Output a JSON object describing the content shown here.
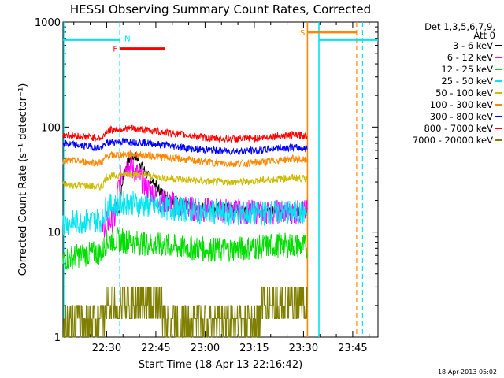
{
  "chart_data": {
    "type": "line",
    "title": "HESSI Observing Summary Count Rates, Corrected",
    "xlabel": "Start Time (18-Apr-13 22:16:42)",
    "ylabel": "Corrected Count Rate (s⁻¹ detector⁻¹)",
    "yscale": "log",
    "ylim": [
      1,
      1000
    ],
    "xlim_minutes": [
      0,
      96
    ],
    "x_ticks": [
      {
        "m": 13.3,
        "label": "22:30"
      },
      {
        "m": 28.3,
        "label": "22:45"
      },
      {
        "m": 43.3,
        "label": "23:00"
      },
      {
        "m": 58.3,
        "label": "23:15"
      },
      {
        "m": 73.3,
        "label": "23:30"
      },
      {
        "m": 88.3,
        "label": "23:45"
      }
    ],
    "y_ticks": [
      {
        "v": 1,
        "label": "1"
      },
      {
        "v": 10,
        "label": "10"
      },
      {
        "v": 100,
        "label": "100"
      },
      {
        "v": 1000,
        "label": "1000"
      }
    ],
    "legend": {
      "placement": "right",
      "header": [
        "Det 1,3,5,6,7,9,",
        "Att 0"
      ]
    },
    "series": [
      {
        "name": "3 - 6 keV",
        "color": "#000000",
        "x": [
          17,
          19,
          20,
          21,
          22,
          23,
          24,
          25,
          26,
          27,
          28,
          29,
          30,
          32,
          34,
          36,
          38,
          40,
          45,
          50,
          55,
          60,
          65,
          70,
          74.5
        ],
        "y": [
          15,
          40,
          48,
          52,
          53,
          48,
          43,
          38,
          34,
          31,
          29,
          26,
          24,
          22,
          20,
          19,
          18,
          17.5,
          17,
          17,
          16.5,
          16.5,
          16,
          16,
          16
        ]
      },
      {
        "name": "6 - 12 keV",
        "color": "#ff00ff",
        "x": [
          12,
          13,
          14,
          15,
          16,
          17,
          18,
          19,
          20,
          21,
          22,
          23,
          24,
          25,
          26,
          27,
          28,
          29,
          30,
          32,
          34,
          36,
          38,
          40,
          45,
          50,
          55,
          60,
          65,
          70,
          74.5
        ],
        "y": [
          11,
          12,
          12.5,
          13,
          13.5,
          28,
          38,
          42,
          43,
          40,
          38,
          35,
          31,
          28,
          26,
          24,
          22,
          21,
          20,
          19,
          18.5,
          17.5,
          17,
          16.5,
          16,
          16,
          15.5,
          15.5,
          15.5,
          15.5,
          15.5
        ]
      },
      {
        "name": "12 - 25 keV",
        "color": "#00dd00",
        "x": [
          0,
          5,
          10,
          12,
          13,
          15,
          20,
          25,
          30,
          35,
          40,
          45,
          50,
          55,
          60,
          65,
          70,
          74.5
        ],
        "y": [
          5.5,
          6,
          6.3,
          6.5,
          8,
          8.5,
          8.2,
          7.8,
          7.5,
          7.2,
          7,
          6.8,
          6.8,
          7,
          7.2,
          7.5,
          7.5,
          7.2
        ]
      },
      {
        "name": "25 - 50 keV",
        "color": "#00e5ee",
        "x": [
          0,
          5,
          10,
          12,
          13,
          15,
          20,
          25,
          30,
          35,
          40,
          45,
          50,
          55,
          60,
          65,
          70,
          74.5
        ],
        "y": [
          12,
          12.5,
          13,
          13,
          17,
          18,
          19,
          18,
          17,
          16.5,
          16,
          15.5,
          15,
          15,
          15,
          15.5,
          15.5,
          15
        ]
      },
      {
        "name": "50 - 100 keV",
        "color": "#ccbb00",
        "x": [
          0,
          5,
          10,
          12,
          13,
          15,
          20,
          25,
          30,
          35,
          40,
          45,
          50,
          55,
          60,
          65,
          70,
          74.5
        ],
        "y": [
          28,
          28,
          27,
          27,
          33,
          34,
          36,
          35,
          33,
          32,
          31,
          30,
          30,
          30,
          31,
          32,
          33,
          32
        ]
      },
      {
        "name": "100 - 300 keV",
        "color": "#ff8800",
        "x": [
          0,
          5,
          10,
          12,
          13,
          15,
          20,
          25,
          30,
          35,
          40,
          45,
          50,
          55,
          60,
          65,
          70,
          74.5
        ],
        "y": [
          48,
          47,
          46,
          46,
          52,
          54,
          55,
          54,
          52,
          50,
          48,
          46,
          45,
          45,
          46,
          48,
          50,
          48
        ]
      },
      {
        "name": "300 - 800 keV",
        "color": "#0000ff",
        "x": [
          0,
          5,
          10,
          12,
          13,
          15,
          20,
          25,
          30,
          35,
          40,
          45,
          50,
          55,
          60,
          65,
          70,
          74.5
        ],
        "y": [
          70,
          67,
          64,
          63,
          70,
          72,
          73,
          71,
          68,
          65,
          62,
          60,
          59,
          59,
          60,
          63,
          64,
          62
        ]
      },
      {
        "name": "800 - 7000 keV",
        "color": "#ff0000",
        "x": [
          0,
          5,
          10,
          12,
          13,
          15,
          20,
          25,
          30,
          35,
          40,
          45,
          50,
          55,
          60,
          65,
          70,
          74.5
        ],
        "y": [
          85,
          82,
          79,
          78,
          90,
          95,
          97,
          94,
          90,
          86,
          82,
          78,
          77,
          77,
          79,
          82,
          84,
          83
        ]
      },
      {
        "name": "7000 - 20000 keV",
        "color": "#808000",
        "x": [
          0,
          6,
          10,
          12,
          13,
          15,
          16,
          24,
          25,
          30,
          31,
          40,
          50,
          51,
          60,
          61,
          74.5
        ],
        "y": [
          2,
          2,
          1.5,
          1.5,
          2.5,
          2.8,
          3,
          3,
          2.5,
          2.5,
          2,
          2,
          2,
          2.2,
          2.2,
          2.8,
          2.8
        ]
      }
    ],
    "annotations": {
      "saa_bar": {
        "label": "S",
        "color": "#ff8800",
        "start": 74.5,
        "end": 89.5,
        "y": 800
      },
      "night_bars": [
        {
          "label": "N",
          "color": "#00e5ee",
          "start": 0,
          "end": 17.3,
          "y": 680
        },
        {
          "label": "N",
          "color": "#00e5ee",
          "start": 78,
          "end": 96,
          "y": 680
        }
      ],
      "flare_bar": {
        "label": "F",
        "color": "#ff0000",
        "start": 17.3,
        "end": 31,
        "y": 560
      },
      "night_dashed_lines": [
        17.3,
        91.3
      ],
      "saa_dashed_lines": [
        89.5
      ],
      "solid_lines": [
        {
          "m": 74.5,
          "color": "#ff8800"
        },
        {
          "m": 78,
          "color": "#00e5ee"
        }
      ]
    },
    "footer_date": "18-Apr-2013 05:02"
  }
}
